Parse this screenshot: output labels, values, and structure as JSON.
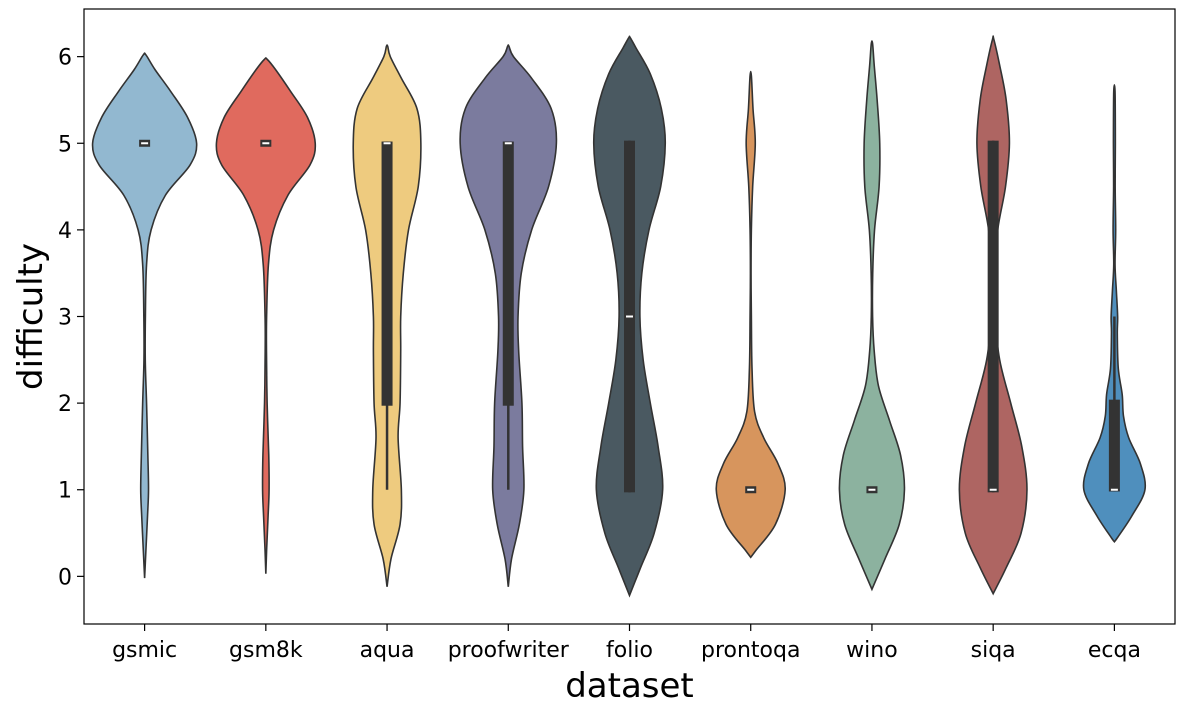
{
  "chart_data": {
    "type": "violin",
    "xlabel": "dataset",
    "ylabel": "difficulty",
    "ylim": [
      -0.55,
      6.55
    ],
    "yticks": [
      0,
      1,
      2,
      3,
      4,
      5,
      6
    ],
    "grid": false,
    "legend": "none",
    "categories": [
      {
        "name": "gsmic",
        "color": "#92b8d0",
        "range": [
          -0.02,
          6.02
        ],
        "median": 5,
        "q1": 5,
        "q3": 5,
        "whisker": [
          5,
          5
        ],
        "density": [
          [
            -0.02,
            0.0
          ],
          [
            0.3,
            0.02
          ],
          [
            0.7,
            0.045
          ],
          [
            1.0,
            0.06
          ],
          [
            1.4,
            0.05
          ],
          [
            2.0,
            0.03
          ],
          [
            2.5,
            0.01
          ],
          [
            3.0,
            0.012
          ],
          [
            3.6,
            0.03
          ],
          [
            4.0,
            0.1
          ],
          [
            4.4,
            0.32
          ],
          [
            4.75,
            0.7
          ],
          [
            5.0,
            0.8
          ],
          [
            5.3,
            0.66
          ],
          [
            5.6,
            0.4
          ],
          [
            5.85,
            0.16
          ],
          [
            6.02,
            0.02
          ]
        ]
      },
      {
        "name": "gsm8k",
        "color": "#e06a5e",
        "range": [
          0.03,
          5.97
        ],
        "median": 5,
        "q1": 5,
        "q3": 5,
        "whisker": [
          5,
          5
        ],
        "density": [
          [
            0.03,
            0.0
          ],
          [
            0.3,
            0.012
          ],
          [
            0.7,
            0.035
          ],
          [
            1.0,
            0.05
          ],
          [
            1.4,
            0.045
          ],
          [
            2.0,
            0.02
          ],
          [
            2.6,
            0.01
          ],
          [
            3.0,
            0.012
          ],
          [
            3.6,
            0.04
          ],
          [
            4.0,
            0.12
          ],
          [
            4.4,
            0.34
          ],
          [
            4.75,
            0.68
          ],
          [
            5.0,
            0.76
          ],
          [
            5.3,
            0.64
          ],
          [
            5.6,
            0.38
          ],
          [
            5.85,
            0.15
          ],
          [
            5.97,
            0.02
          ]
        ]
      },
      {
        "name": "aqua",
        "color": "#eecb7f",
        "range": [
          -0.12,
          6.12
        ],
        "median": 5,
        "q1": 1.97,
        "q3": 5.02,
        "whisker": [
          1.0,
          5.02
        ],
        "density": [
          [
            -0.12,
            0.0
          ],
          [
            0.2,
            0.06
          ],
          [
            0.6,
            0.2
          ],
          [
            1.0,
            0.22
          ],
          [
            1.6,
            0.17
          ],
          [
            2.0,
            0.2
          ],
          [
            2.6,
            0.21
          ],
          [
            3.0,
            0.21
          ],
          [
            3.5,
            0.25
          ],
          [
            4.0,
            0.33
          ],
          [
            4.5,
            0.48
          ],
          [
            5.0,
            0.52
          ],
          [
            5.4,
            0.46
          ],
          [
            5.75,
            0.22
          ],
          [
            6.0,
            0.05
          ],
          [
            6.12,
            0.01
          ]
        ]
      },
      {
        "name": "proofwriter",
        "color": "#7b7b9e",
        "range": [
          -0.12,
          6.12
        ],
        "median": 5,
        "q1": 1.97,
        "q3": 5.02,
        "whisker": [
          1.0,
          5.02
        ],
        "density": [
          [
            -0.12,
            0.0
          ],
          [
            0.2,
            0.05
          ],
          [
            0.6,
            0.17
          ],
          [
            1.0,
            0.24
          ],
          [
            1.5,
            0.22
          ],
          [
            2.0,
            0.21
          ],
          [
            2.6,
            0.16
          ],
          [
            3.0,
            0.15
          ],
          [
            3.5,
            0.2
          ],
          [
            4.0,
            0.36
          ],
          [
            4.5,
            0.62
          ],
          [
            5.0,
            0.74
          ],
          [
            5.4,
            0.66
          ],
          [
            5.75,
            0.36
          ],
          [
            6.0,
            0.08
          ],
          [
            6.12,
            0.01
          ]
        ]
      },
      {
        "name": "folio",
        "color": "#4a5961",
        "range": [
          -0.22,
          6.22
        ],
        "median": 3,
        "q1": 0.97,
        "q3": 5.03,
        "whisker": [
          0.97,
          5.03
        ],
        "density": [
          [
            -0.22,
            0.0
          ],
          [
            0.1,
            0.17
          ],
          [
            0.5,
            0.38
          ],
          [
            1.0,
            0.51
          ],
          [
            1.5,
            0.44
          ],
          [
            2.0,
            0.32
          ],
          [
            2.5,
            0.21
          ],
          [
            3.0,
            0.16
          ],
          [
            3.5,
            0.19
          ],
          [
            4.0,
            0.3
          ],
          [
            4.5,
            0.48
          ],
          [
            5.0,
            0.55
          ],
          [
            5.4,
            0.49
          ],
          [
            5.8,
            0.32
          ],
          [
            6.1,
            0.1
          ],
          [
            6.22,
            0.01
          ]
        ]
      },
      {
        "name": "prontoqa",
        "color": "#d7955d",
        "range": [
          0.22,
          5.78
        ],
        "median": 1,
        "q1": 0.97,
        "q3": 1.03,
        "whisker": [
          0.97,
          1.03
        ],
        "density": [
          [
            0.22,
            0.0
          ],
          [
            0.3,
            0.08
          ],
          [
            0.6,
            0.38
          ],
          [
            1.0,
            0.53
          ],
          [
            1.3,
            0.42
          ],
          [
            1.6,
            0.2
          ],
          [
            1.9,
            0.06
          ],
          [
            2.4,
            0.02
          ],
          [
            3.0,
            0.01
          ],
          [
            3.5,
            0.005
          ],
          [
            4.0,
            0.01
          ],
          [
            4.5,
            0.03
          ],
          [
            5.0,
            0.07
          ],
          [
            5.4,
            0.035
          ],
          [
            5.78,
            0.01
          ]
        ]
      },
      {
        "name": "wino",
        "color": "#8cb29f",
        "range": [
          -0.15,
          6.15
        ],
        "median": 1,
        "q1": 0.97,
        "q3": 1.03,
        "whisker": [
          0.97,
          1.03
        ],
        "density": [
          [
            -0.15,
            0.0
          ],
          [
            0.2,
            0.2
          ],
          [
            0.6,
            0.42
          ],
          [
            1.0,
            0.5
          ],
          [
            1.4,
            0.44
          ],
          [
            1.8,
            0.27
          ],
          [
            2.2,
            0.1
          ],
          [
            2.6,
            0.035
          ],
          [
            3.0,
            0.01
          ],
          [
            3.5,
            0.012
          ],
          [
            4.0,
            0.04
          ],
          [
            4.5,
            0.11
          ],
          [
            5.0,
            0.12
          ],
          [
            5.5,
            0.08
          ],
          [
            5.9,
            0.035
          ],
          [
            6.15,
            0.01
          ]
        ]
      },
      {
        "name": "siqa",
        "color": "#ae6562",
        "range": [
          -0.2,
          6.2
        ],
        "median": 1,
        "q1": 0.97,
        "q3": 5.03,
        "whisker": [
          0.97,
          5.03
        ],
        "density": [
          [
            -0.2,
            0.0
          ],
          [
            0.1,
            0.2
          ],
          [
            0.5,
            0.43
          ],
          [
            1.0,
            0.52
          ],
          [
            1.5,
            0.44
          ],
          [
            2.0,
            0.27
          ],
          [
            2.5,
            0.1
          ],
          [
            3.0,
            0.03
          ],
          [
            3.5,
            0.025
          ],
          [
            4.0,
            0.07
          ],
          [
            4.5,
            0.19
          ],
          [
            5.0,
            0.25
          ],
          [
            5.5,
            0.2
          ],
          [
            5.9,
            0.1
          ],
          [
            6.2,
            0.01
          ]
        ]
      },
      {
        "name": "ecqa",
        "color": "#4f8fbd",
        "range": [
          0.4,
          5.6
        ],
        "median": 1,
        "q1": 0.98,
        "q3": 2.04,
        "whisker": [
          0.98,
          3.0
        ],
        "density": [
          [
            0.4,
            0.0
          ],
          [
            0.45,
            0.05
          ],
          [
            0.7,
            0.27
          ],
          [
            1.0,
            0.47
          ],
          [
            1.3,
            0.4
          ],
          [
            1.6,
            0.22
          ],
          [
            1.85,
            0.14
          ],
          [
            2.1,
            0.12
          ],
          [
            2.4,
            0.06
          ],
          [
            2.8,
            0.045
          ],
          [
            3.0,
            0.05
          ],
          [
            3.3,
            0.03
          ],
          [
            3.6,
            0.01
          ],
          [
            4.0,
            0.02
          ],
          [
            4.5,
            0.012
          ],
          [
            5.0,
            0.015
          ],
          [
            5.6,
            0.01
          ]
        ]
      }
    ]
  }
}
